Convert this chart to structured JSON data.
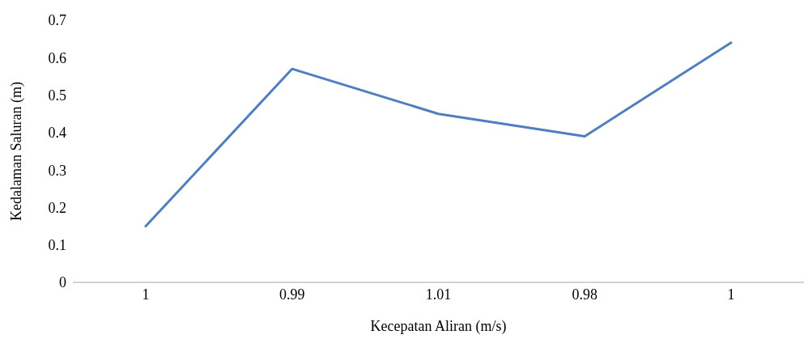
{
  "chart_data": {
    "type": "line",
    "xlabel": "Kecepatan Aliran (m/s)",
    "ylabel": "Kedalaman Saluran (m)",
    "categories": [
      "1",
      "0.99",
      "1.01",
      "0.98",
      "1"
    ],
    "series": [
      {
        "color": "#4f7fbd",
        "values": [
          0.15,
          0.57,
          0.45,
          0.39,
          0.64
        ]
      }
    ],
    "ylim": [
      0,
      0.7
    ],
    "yticks": [
      0,
      0.1,
      0.2,
      0.3,
      0.4,
      0.5,
      0.6,
      0.7
    ],
    "grid": false,
    "legend": false,
    "marker": "none",
    "line_style": "solid"
  }
}
